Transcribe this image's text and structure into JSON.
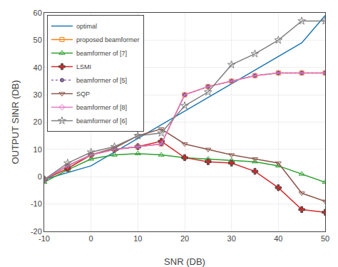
{
  "chart_data": {
    "type": "line",
    "x": [
      -10,
      -5,
      0,
      5,
      10,
      15,
      20,
      25,
      30,
      35,
      40,
      45,
      50
    ],
    "series": [
      {
        "name": "optimal",
        "values": [
          -1,
          1.5,
          4,
          9,
          14,
          19,
          24,
          29,
          34,
          39,
          44,
          49,
          59
        ],
        "line_style": "solid"
      },
      {
        "name": "proposed beamformer",
        "values": [
          -1,
          4,
          8,
          10,
          11,
          12,
          30,
          33,
          35,
          37,
          38,
          38,
          38
        ],
        "marker": "square",
        "line_style": "solid"
      },
      {
        "name": "beamformer of [7]",
        "values": [
          -2,
          2.5,
          6.5,
          8,
          8.5,
          8,
          7,
          6.5,
          6,
          5.5,
          4,
          1,
          -2
        ],
        "marker": "triangle-up",
        "line_style": "solid"
      },
      {
        "name": "LSMI",
        "values": [
          -1,
          3,
          8,
          10,
          11,
          13,
          7,
          5.5,
          5,
          2,
          -4,
          -12,
          -13
        ],
        "marker": "plus",
        "line_style": "solid"
      },
      {
        "name": "beamformer of [5]",
        "values": [
          -1,
          4,
          8,
          10,
          11,
          12,
          30,
          33,
          35,
          37,
          38,
          38,
          38
        ],
        "marker": "dot",
        "line_style": "dotted"
      },
      {
        "name": "SQP",
        "values": [
          -1,
          4,
          8,
          10.5,
          15,
          17.5,
          12,
          10,
          8,
          6.5,
          5,
          -6,
          -9
        ],
        "marker": "triangle-down",
        "line_style": "solid"
      },
      {
        "name": "beamformer of [8]",
        "values": [
          -1,
          4,
          8,
          10,
          11,
          12,
          30,
          33,
          35,
          37,
          38,
          38,
          38
        ],
        "marker": "diamond",
        "line_style": "solid"
      },
      {
        "name": "beamformer of [6]",
        "values": [
          -1,
          5,
          9,
          11,
          15,
          16,
          26,
          31,
          41,
          45,
          50,
          57,
          57
        ],
        "marker": "star",
        "line_style": "solid"
      }
    ],
    "xlim": [
      -10,
      50
    ],
    "ylim": [
      -20,
      60
    ],
    "xticks": [
      -10,
      0,
      10,
      20,
      30,
      40,
      50
    ],
    "yticks": [
      -20,
      -10,
      0,
      10,
      20,
      30,
      40,
      50,
      60
    ],
    "x_label": "SNR (DB)",
    "y_label": "OUTPUT SINR (DB)",
    "grid": true,
    "legend": "upper left"
  }
}
